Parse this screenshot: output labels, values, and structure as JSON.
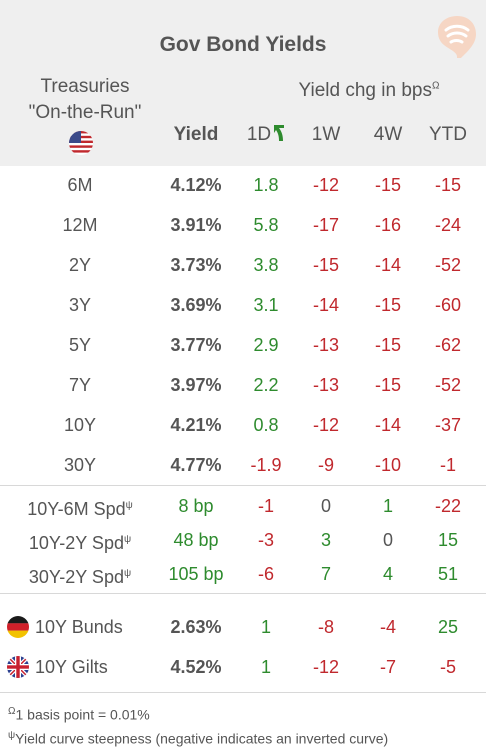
{
  "title": "Gov Bond Yields",
  "treasuries_label": "Treasuries",
  "on_the_run_label": "\"On-the-Run\"",
  "yield_header": "Yield",
  "chg_header": "Yield chg in bps",
  "chg_header_sup": "Ω",
  "columns": [
    "1D",
    "1W",
    "4W",
    "YTD"
  ],
  "rows": [
    {
      "label": "6M",
      "yield": "4.12%",
      "d1": "1.8",
      "w1": "-12",
      "w4": "-15",
      "ytd": "-15"
    },
    {
      "label": "12M",
      "yield": "3.91%",
      "d1": "5.8",
      "w1": "-17",
      "w4": "-16",
      "ytd": "-24"
    },
    {
      "label": "2Y",
      "yield": "3.73%",
      "d1": "3.8",
      "w1": "-15",
      "w4": "-14",
      "ytd": "-52"
    },
    {
      "label": "3Y",
      "yield": "3.69%",
      "d1": "3.1",
      "w1": "-14",
      "w4": "-15",
      "ytd": "-60"
    },
    {
      "label": "5Y",
      "yield": "3.77%",
      "d1": "2.9",
      "w1": "-13",
      "w4": "-15",
      "ytd": "-62"
    },
    {
      "label": "7Y",
      "yield": "3.97%",
      "d1": "2.2",
      "w1": "-13",
      "w4": "-15",
      "ytd": "-52"
    },
    {
      "label": "10Y",
      "yield": "4.21%",
      "d1": "0.8",
      "w1": "-12",
      "w4": "-14",
      "ytd": "-37"
    },
    {
      "label": "30Y",
      "yield": "4.77%",
      "d1": "-1.9",
      "w1": "-9",
      "w4": "-10",
      "ytd": "-1"
    }
  ],
  "spreads": [
    {
      "label": "10Y-6M Spd",
      "sup": "ψ",
      "val": "8 bp",
      "d1": "-1",
      "w1": "0",
      "w4": "1",
      "ytd": "-22"
    },
    {
      "label": "10Y-2Y Spd",
      "sup": "ψ",
      "val": "48 bp",
      "d1": "-3",
      "w1": "3",
      "w4": "0",
      "ytd": "15"
    },
    {
      "label": "30Y-2Y Spd",
      "sup": "ψ",
      "val": "105 bp",
      "d1": "-6",
      "w1": "7",
      "w4": "4",
      "ytd": "51"
    }
  ],
  "intl": [
    {
      "label": "10Y Bunds",
      "flag": "de-flag-icon",
      "yield": "2.63%",
      "d1": "1",
      "w1": "-8",
      "w4": "-4",
      "ytd": "25"
    },
    {
      "label": "10Y Gilts",
      "flag": "uk-flag-icon",
      "yield": "4.52%",
      "d1": "1",
      "w1": "-12",
      "w4": "-7",
      "ytd": "-5"
    }
  ],
  "footnotes": [
    {
      "sup": "Ω",
      "text": "1 basis point = 0.01%"
    },
    {
      "sup": "ψ",
      "text": "Yield curve steepness (negative indicates an inverted curve)"
    }
  ],
  "colors": {
    "positive": "#2e8b2e",
    "negative": "#c0282d",
    "header_bg": "#efefef"
  }
}
